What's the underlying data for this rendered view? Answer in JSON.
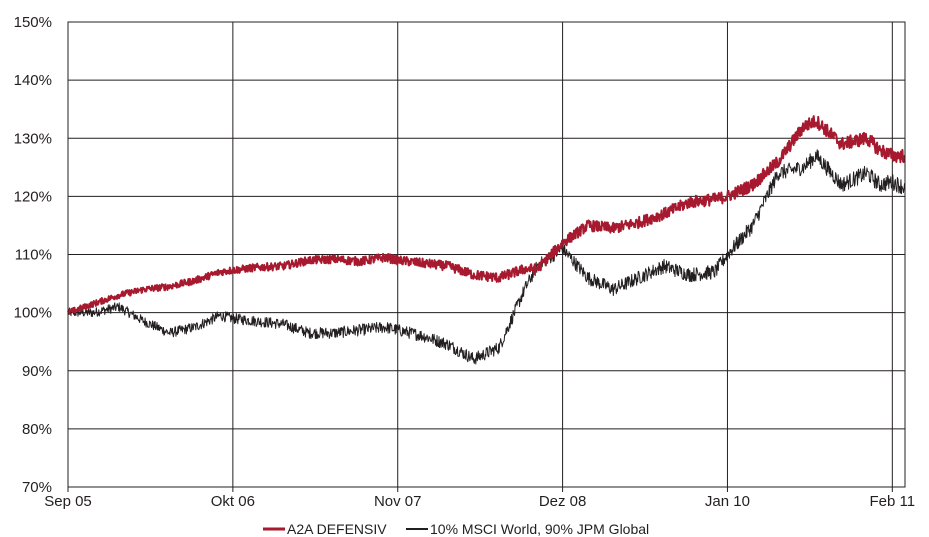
{
  "chart_data": {
    "type": "line",
    "title": "",
    "xlabel": "",
    "ylabel": "",
    "ylim": [
      70,
      150
    ],
    "yticks": [
      "150%",
      "140%",
      "130%",
      "120%",
      "110%",
      "100%",
      "90%",
      "80%",
      "70%"
    ],
    "ytick_values": [
      150,
      140,
      130,
      120,
      110,
      100,
      90,
      80,
      70
    ],
    "xticks": [
      "Sep 05",
      "Okt 06",
      "Nov 07",
      "Dez 08",
      "Jan 10",
      "Feb 11"
    ],
    "xtick_values": [
      "2005-09",
      "2006-10",
      "2007-11",
      "2008-12",
      "2010-01",
      "2011-02"
    ],
    "xlim": [
      "2005-09",
      "2011-03"
    ],
    "grid": true,
    "legend_position": "bottom",
    "series": [
      {
        "name": "A2A DEFENSIV",
        "color": "#a6192e",
        "x": [
          "2005-09",
          "2005-11",
          "2006-01",
          "2006-03",
          "2006-05",
          "2006-07",
          "2006-09",
          "2006-10",
          "2006-12",
          "2007-02",
          "2007-04",
          "2007-06",
          "2007-08",
          "2007-10",
          "2007-11",
          "2008-01",
          "2008-03",
          "2008-05",
          "2008-07",
          "2008-09",
          "2008-10",
          "2008-12",
          "2009-02",
          "2009-04",
          "2009-06",
          "2009-08",
          "2009-10",
          "2009-12",
          "2010-01",
          "2010-03",
          "2010-05",
          "2010-07",
          "2010-08",
          "2010-10",
          "2010-12",
          "2011-01",
          "2011-02",
          "2011-03"
        ],
        "values": [
          100,
          101.5,
          103,
          104,
          104.5,
          105.5,
          107,
          107.3,
          107.8,
          108,
          109,
          109.2,
          108.8,
          109.5,
          109,
          108.5,
          108,
          106.5,
          106,
          107.5,
          107.5,
          112,
          115,
          114.5,
          115.5,
          117,
          119,
          119.5,
          120,
          122,
          126,
          132,
          133,
          129,
          130,
          128,
          127,
          127
        ]
      },
      {
        "name": "10% MSCI World, 90% JPM Global",
        "color": "#231f20",
        "x": [
          "2005-09",
          "2005-11",
          "2006-01",
          "2006-03",
          "2006-05",
          "2006-07",
          "2006-09",
          "2006-10",
          "2006-12",
          "2007-02",
          "2007-04",
          "2007-06",
          "2007-08",
          "2007-10",
          "2007-11",
          "2008-01",
          "2008-03",
          "2008-05",
          "2008-07",
          "2008-09",
          "2008-10",
          "2008-12",
          "2009-02",
          "2009-04",
          "2009-06",
          "2009-08",
          "2009-10",
          "2009-12",
          "2010-01",
          "2010-03",
          "2010-05",
          "2010-07",
          "2010-08",
          "2010-10",
          "2010-12",
          "2011-01",
          "2011-02",
          "2011-03"
        ],
        "values": [
          100,
          100,
          101,
          98.5,
          96.5,
          97.5,
          99.5,
          99,
          98.5,
          98,
          96.5,
          96.5,
          97,
          97.5,
          97,
          96,
          94.5,
          92,
          94,
          104,
          108,
          111,
          106,
          104,
          106,
          108,
          106.5,
          107,
          110,
          115,
          124,
          125,
          127,
          122,
          124,
          122,
          122.5,
          121.5
        ]
      }
    ]
  }
}
